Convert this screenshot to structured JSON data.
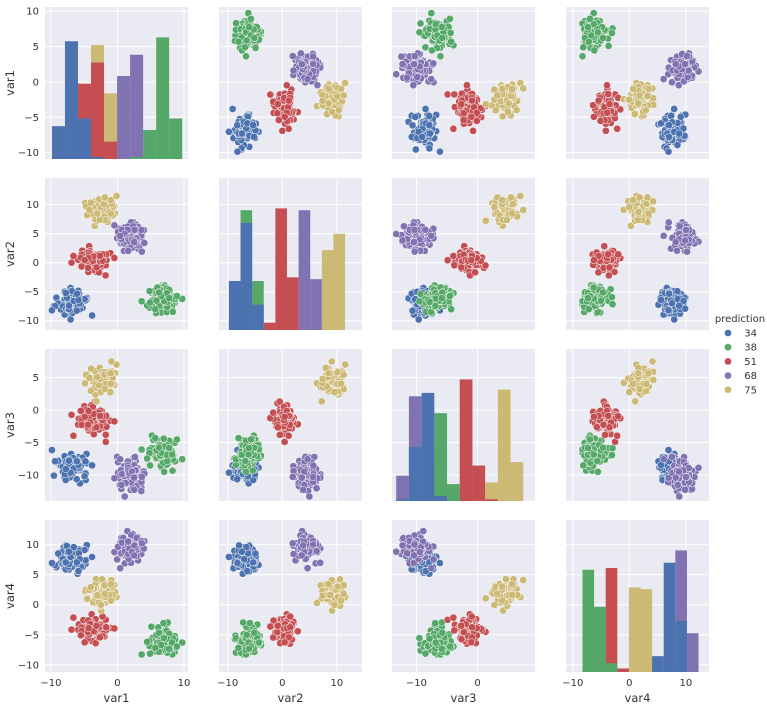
{
  "chart_data": {
    "type": "scatter",
    "kind": "pairplot",
    "variables": [
      "var1",
      "var2",
      "var3",
      "var4"
    ],
    "axis_ranges": {
      "var1": [
        -10.9,
        10.6
      ],
      "var2": [
        -11.6,
        14.6
      ],
      "var3": [
        -14.0,
        9.4
      ],
      "var4": [
        -11.2,
        14.1
      ]
    },
    "y_ticks": {
      "var1": [
        -10,
        -5,
        0,
        5,
        10
      ],
      "var2": [
        -10,
        -5,
        0,
        5,
        10
      ],
      "var3": [
        -10,
        -5,
        0,
        5
      ],
      "var4": [
        -10,
        -5,
        0,
        5,
        10
      ]
    },
    "x_ticks": {
      "var1": [
        -10,
        0,
        10
      ],
      "var2": [
        -10,
        0,
        10
      ],
      "var3": [
        -10,
        0
      ],
      "var4": [
        -10,
        0,
        10
      ]
    },
    "grid": true,
    "diagonal": "histogram",
    "legend": {
      "title": "prediction",
      "placement": "right",
      "entries": [
        "34",
        "38",
        "51",
        "68",
        "75"
      ]
    },
    "classes": [
      {
        "label": "34",
        "color": "#4C72B0",
        "center": {
          "var1": -7.0,
          "var2": -7.0,
          "var3": -9.0,
          "var4": 7.5
        },
        "spread": 1.1
      },
      {
        "label": "38",
        "color": "#55A868",
        "center": {
          "var1": 6.8,
          "var2": -6.0,
          "var3": -6.8,
          "var4": -6.3
        },
        "spread": 1.1
      },
      {
        "label": "51",
        "color": "#C44E52",
        "center": {
          "var1": -3.6,
          "var2": 0.5,
          "var3": -1.5,
          "var4": -4.4
        },
        "spread": 1.1
      },
      {
        "label": "68",
        "color": "#8172B2",
        "center": {
          "var1": 2.0,
          "var2": 4.4,
          "var3": -9.8,
          "var4": 9.4
        },
        "spread": 1.1
      },
      {
        "label": "75",
        "color": "#CCB974",
        "center": {
          "var1": -2.6,
          "var2": 9.3,
          "var3": 4.5,
          "var4": 2.1
        },
        "spread": 1.1
      }
    ],
    "points_per_class": 100
  },
  "colors": {
    "panel_background": "#EAEAF2",
    "grid": "#FFFFFF"
  }
}
